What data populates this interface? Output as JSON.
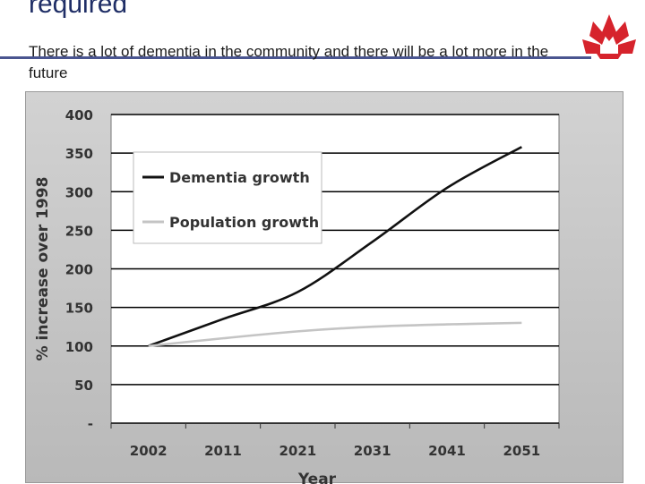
{
  "slide": {
    "title": "required",
    "subtitle": "There is a lot of dementia in the community and there will be a lot more in the future"
  },
  "logo": {
    "icon": "waratah-flower-icon",
    "color": "#d6232c"
  },
  "chart_data": {
    "type": "line",
    "title": "",
    "xlabel": "Year",
    "ylabel": "% increase over 1998",
    "categories": [
      "2002",
      "2011",
      "2021",
      "2031",
      "2041",
      "2051"
    ],
    "y_tick_labels": [
      "-",
      "50",
      "100",
      "150",
      "200",
      "250",
      "300",
      "350",
      "400"
    ],
    "ylim": [
      0,
      400
    ],
    "grid": true,
    "legend_position": "top-left",
    "series": [
      {
        "name": "Dementia growth",
        "color": "#111111",
        "values": [
          100,
          135,
          170,
          235,
          305,
          358
        ]
      },
      {
        "name": "Population growth",
        "color": "#c4c4c4",
        "values": [
          100,
          110,
          119,
          125,
          128,
          130
        ]
      }
    ]
  }
}
